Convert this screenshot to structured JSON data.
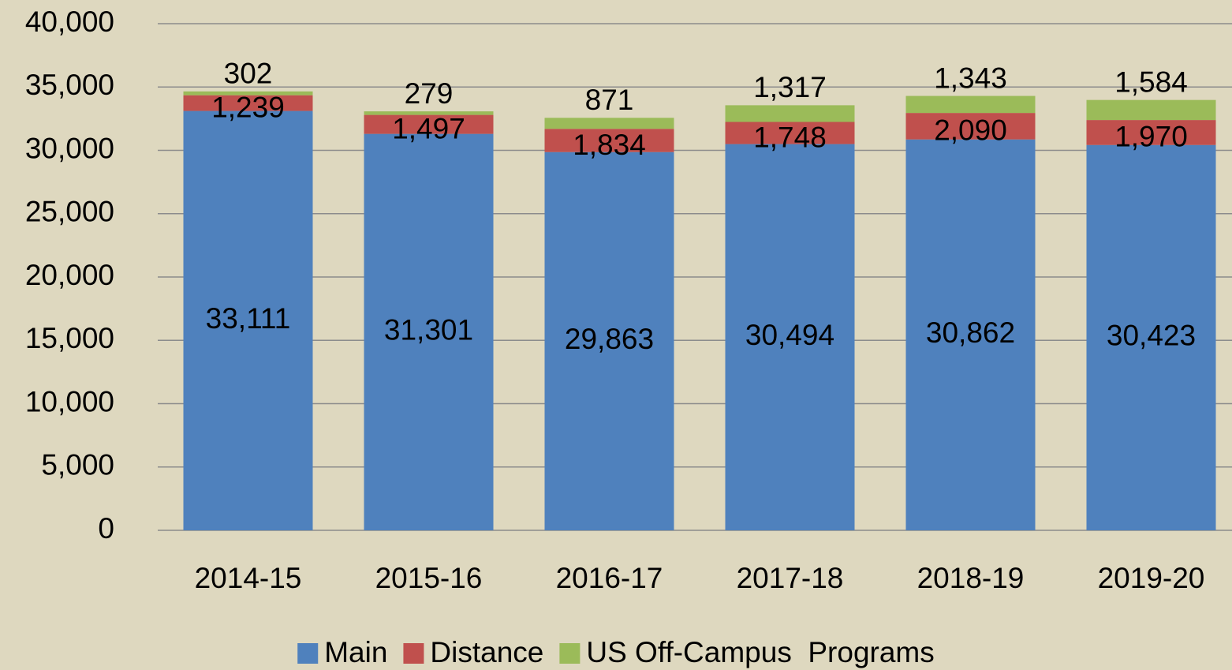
{
  "chart_data": {
    "type": "stacked_bar",
    "categories": [
      "2014-15",
      "2015-16",
      "2016-17",
      "2017-18",
      "2018-19",
      "2019-20"
    ],
    "series": [
      {
        "name": "Main",
        "color": "#4f81bd",
        "values": [
          33111,
          31301,
          29863,
          30494,
          30862,
          30423
        ],
        "value_labels": [
          "33,111",
          "31,301",
          "29,863",
          "30,494",
          "30,862",
          "30,423"
        ]
      },
      {
        "name": "Distance",
        "color": "#c0504d",
        "values": [
          1239,
          1497,
          1834,
          1748,
          2090,
          1970
        ],
        "value_labels": [
          "1,239",
          "1,497",
          "1,834",
          "1,748",
          "2,090",
          "1,970"
        ]
      },
      {
        "name": "US Off-Campus  Programs",
        "color": "#9bbb59",
        "values": [
          302,
          279,
          871,
          1317,
          1343,
          1584
        ],
        "value_labels": [
          "302",
          "279",
          "871",
          "1,317",
          "1,343",
          "1,584"
        ]
      }
    ],
    "ylim": [
      0,
      40000
    ],
    "yticks": [
      0,
      {
        "value": 5000,
        "label": "5,000"
      },
      {
        "value": 10000,
        "label": "10,000"
      },
      {
        "value": 15000,
        "label": "15,000"
      },
      {
        "value": 20000,
        "label": "20,000"
      },
      {
        "value": 25000,
        "label": "25,000"
      },
      {
        "value": 30000,
        "label": "30,000"
      },
      {
        "value": 35000,
        "label": "35,000"
      },
      {
        "value": 40000,
        "label": "40,000"
      }
    ],
    "grid": true,
    "legend": "bottom"
  }
}
